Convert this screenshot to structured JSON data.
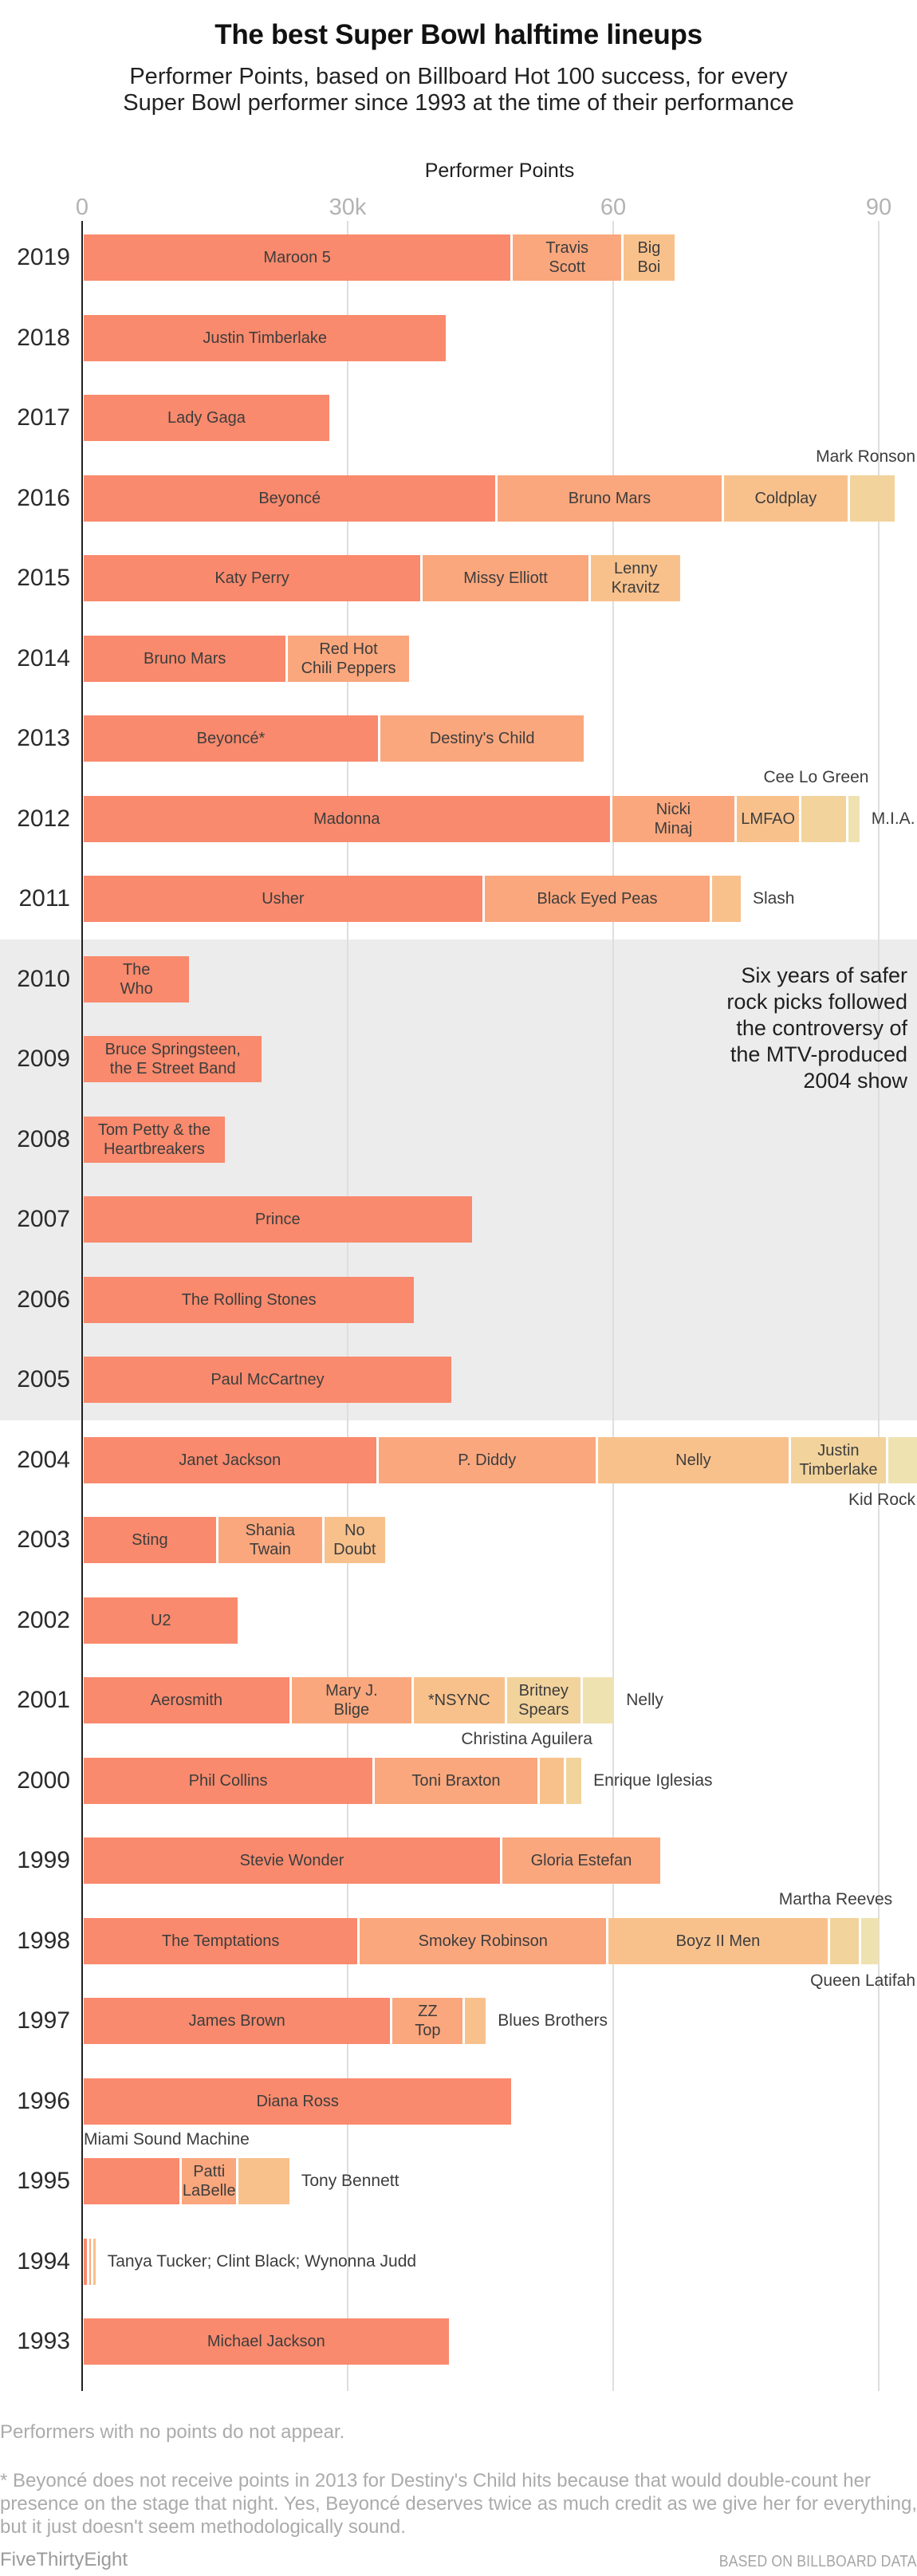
{
  "header": {
    "title": "The best Super Bowl halftime lineups",
    "subtitle": "Performer Points, based on Billboard Hot 100 success, for every\nSuper Bowl performer since 1993 at the time of their performance"
  },
  "chart_data": {
    "type": "bar",
    "orientation": "horizontal-stacked",
    "title": "The best Super Bowl halftime lineups",
    "xlabel": "Performer Points",
    "xlim": [
      0,
      94800
    ],
    "grid": "vertical",
    "x_ticks": [
      {
        "label": "0",
        "value": 0
      },
      {
        "label": "30k",
        "value": 30000
      },
      {
        "label": "60",
        "value": 60000
      },
      {
        "label": "90",
        "value": 90000
      }
    ],
    "palette": [
      "#f98a6d",
      "#faa77d",
      "#f8c18c",
      "#f2d39c",
      "#efe2b1"
    ],
    "colors": {
      "band": "#ececec",
      "gridline": "#dedede",
      "axis_line": "#222222",
      "tick_label": "#b3b3b3",
      "bar_label": "#3d3d3d"
    },
    "rows": [
      {
        "year": "2019",
        "segments": [
          {
            "name": "Maroon 5",
            "value": 48500,
            "label": "inside"
          },
          {
            "name": "Travis Scott",
            "lines": [
              "Travis",
              "Scott"
            ],
            "value": 12500,
            "label": "inside"
          },
          {
            "name": "Big Boi",
            "lines": [
              "Big",
              "Boi"
            ],
            "value": 6000,
            "label": "inside"
          }
        ]
      },
      {
        "year": "2018",
        "segments": [
          {
            "name": "Justin Timberlake",
            "value": 41200,
            "label": "inside"
          }
        ]
      },
      {
        "year": "2017",
        "segments": [
          {
            "name": "Lady Gaga",
            "value": 28000,
            "label": "inside"
          }
        ]
      },
      {
        "year": "2016",
        "segments": [
          {
            "name": "Beyoncé",
            "value": 46800,
            "label": "inside"
          },
          {
            "name": "Bruno Mars",
            "value": 25500,
            "label": "inside"
          },
          {
            "name": "Coldplay",
            "value": 14300,
            "label": "inside"
          },
          {
            "name": "Mark Ronson",
            "value": 5300,
            "label": "above"
          }
        ]
      },
      {
        "year": "2015",
        "segments": [
          {
            "name": "Katy Perry",
            "value": 38300,
            "label": "inside"
          },
          {
            "name": "Missy Elliott",
            "value": 19000,
            "label": "inside"
          },
          {
            "name": "Lenny Kravitz",
            "lines": [
              "Lenny",
              "Kravitz"
            ],
            "value": 10400,
            "label": "inside"
          }
        ]
      },
      {
        "year": "2014",
        "segments": [
          {
            "name": "Bruno Mars",
            "value": 23100,
            "label": "inside"
          },
          {
            "name": "Red Hot Chili Peppers",
            "lines": [
              "Red Hot",
              "Chili Peppers"
            ],
            "value": 13900,
            "label": "inside"
          }
        ]
      },
      {
        "year": "2013",
        "segments": [
          {
            "name": "Beyoncé*",
            "value": 33500,
            "label": "inside"
          },
          {
            "name": "Destiny's Child",
            "value": 23300,
            "label": "inside"
          }
        ]
      },
      {
        "year": "2012",
        "segments": [
          {
            "name": "Madonna",
            "value": 59700,
            "label": "inside"
          },
          {
            "name": "Nicki Minaj",
            "lines": [
              "Nicki",
              "Minaj"
            ],
            "value": 14100,
            "label": "inside"
          },
          {
            "name": "LMFAO",
            "value": 7300,
            "label": "inside"
          },
          {
            "name": "Cee Lo Green",
            "value": 5300,
            "label": "above"
          },
          {
            "name": "M.I.A.",
            "value": 1500,
            "label": "right"
          }
        ]
      },
      {
        "year": "2011",
        "segments": [
          {
            "name": "Usher",
            "value": 45300,
            "label": "inside"
          },
          {
            "name": "Black Eyed Peas",
            "value": 25700,
            "label": "inside"
          },
          {
            "name": "Slash",
            "value": 3500,
            "label": "right"
          }
        ]
      },
      {
        "year": "2010",
        "segments": [
          {
            "name": "The Who",
            "lines": [
              "The",
              "Who"
            ],
            "value": 12200,
            "label": "inside"
          }
        ]
      },
      {
        "year": "2009",
        "segments": [
          {
            "name": "Bruce Springsteen, the E Street Band",
            "lines": [
              "Bruce Springsteen,",
              "the E Street Band"
            ],
            "value": 20400,
            "label": "inside"
          }
        ]
      },
      {
        "year": "2008",
        "segments": [
          {
            "name": "Tom Petty & the Heartbreakers",
            "lines": [
              "Tom Petty & the",
              "Heartbreakers"
            ],
            "value": 16200,
            "label": "inside"
          }
        ]
      },
      {
        "year": "2007",
        "segments": [
          {
            "name": "Prince",
            "value": 44100,
            "label": "inside"
          }
        ]
      },
      {
        "year": "2006",
        "segments": [
          {
            "name": "The Rolling Stones",
            "value": 37600,
            "label": "inside"
          }
        ]
      },
      {
        "year": "2005",
        "segments": [
          {
            "name": "Paul McCartney",
            "value": 41800,
            "label": "inside"
          }
        ]
      },
      {
        "year": "2004",
        "segments": [
          {
            "name": "Janet Jackson",
            "value": 33300,
            "label": "inside"
          },
          {
            "name": "P. Diddy",
            "value": 24800,
            "label": "inside"
          },
          {
            "name": "Nelly",
            "value": 21800,
            "label": "inside"
          },
          {
            "name": "Justin Timberlake",
            "lines": [
              "Justin",
              "Timberlake"
            ],
            "value": 11000,
            "label": "inside"
          },
          {
            "name": "Kid Rock",
            "value": 3900,
            "label": "below"
          }
        ]
      },
      {
        "year": "2003",
        "segments": [
          {
            "name": "Sting",
            "value": 15200,
            "label": "inside"
          },
          {
            "name": "Shania Twain",
            "lines": [
              "Shania",
              "Twain"
            ],
            "value": 12000,
            "label": "inside"
          },
          {
            "name": "No Doubt",
            "lines": [
              "No",
              "Doubt"
            ],
            "value": 7100,
            "label": "inside"
          }
        ]
      },
      {
        "year": "2002",
        "segments": [
          {
            "name": "U2",
            "value": 17700,
            "label": "inside"
          }
        ]
      },
      {
        "year": "2001",
        "segments": [
          {
            "name": "Aerosmith",
            "value": 23500,
            "label": "inside"
          },
          {
            "name": "Mary J. Blige",
            "lines": [
              "Mary J.",
              "Blige"
            ],
            "value": 13800,
            "label": "inside"
          },
          {
            "name": "*NSYNC",
            "value": 10500,
            "label": "inside"
          },
          {
            "name": "Britney Spears",
            "lines": [
              "Britney",
              "Spears"
            ],
            "value": 8600,
            "label": "inside"
          },
          {
            "name": "Nelly",
            "value": 3800,
            "label": "right"
          }
        ]
      },
      {
        "year": "2000",
        "segments": [
          {
            "name": "Phil Collins",
            "value": 32900,
            "label": "inside"
          },
          {
            "name": "Toni Braxton",
            "value": 18600,
            "label": "inside"
          },
          {
            "name": "Christina Aguilera",
            "value": 3000,
            "label": "above"
          },
          {
            "name": "Enrique Iglesias",
            "value": 2000,
            "label": "right"
          }
        ]
      },
      {
        "year": "1999",
        "segments": [
          {
            "name": "Stevie Wonder",
            "value": 47300,
            "label": "inside"
          },
          {
            "name": "Gloria Estefan",
            "value": 18100,
            "label": "inside"
          }
        ]
      },
      {
        "year": "1998",
        "segments": [
          {
            "name": "The Temptations",
            "value": 31200,
            "label": "inside"
          },
          {
            "name": "Smokey Robinson",
            "value": 28100,
            "label": "inside"
          },
          {
            "name": "Boyz II Men",
            "value": 25000,
            "label": "inside"
          },
          {
            "name": "Martha Reeves",
            "value": 3500,
            "label": "above"
          },
          {
            "name": "Queen Latifah",
            "value": 2300,
            "label": "below"
          }
        ]
      },
      {
        "year": "1997",
        "segments": [
          {
            "name": "James Brown",
            "value": 34900,
            "label": "inside"
          },
          {
            "name": "ZZ Top",
            "lines": [
              "ZZ",
              "Top"
            ],
            "value": 8200,
            "label": "inside"
          },
          {
            "name": "Blues Brothers",
            "value": 2600,
            "label": "right"
          }
        ]
      },
      {
        "year": "1996",
        "segments": [
          {
            "name": "Diana Ross",
            "value": 48600,
            "label": "inside"
          }
        ]
      },
      {
        "year": "1995",
        "segments": [
          {
            "name": "Miami Sound Machine",
            "value": 11100,
            "label": "above-left"
          },
          {
            "name": "Patti LaBelle",
            "lines": [
              "Patti",
              "LaBelle"
            ],
            "value": 6400,
            "label": "inside"
          },
          {
            "name": "Tony Bennett",
            "value": 6000,
            "label": "right"
          }
        ]
      },
      {
        "year": "1994",
        "outside_label": "Tanya Tucker; Clint Black; Wynonna Judd",
        "segments": [
          {
            "name": "Tanya Tucker",
            "value": 600,
            "label": "none"
          },
          {
            "name": "Clint Black",
            "value": 500,
            "label": "none"
          },
          {
            "name": "Wynonna Judd",
            "value": 500,
            "label": "none"
          }
        ]
      },
      {
        "year": "1993",
        "segments": [
          {
            "name": "Michael Jackson",
            "value": 41500,
            "label": "inside"
          }
        ]
      }
    ],
    "shaded_band": {
      "start_year": "2010",
      "end_year": "2005",
      "color": "#ececec"
    },
    "annotation": {
      "text": "Six years of safer\nrock picks followed\nthe controversy of\nthe MTV-produced\n2004 show"
    }
  },
  "footnotes": {
    "note1": "Performers with no points do not appear.",
    "note2": "* Beyoncé does not receive points in 2013 for Destiny's Child hits because that would double-count her presence on the stage that night. Yes, Beyoncé deserves twice as much credit as we give her for everything, but it just doesn't seem methodologically sound."
  },
  "footer": {
    "left": "FiveThirtyEight",
    "right": "BASED ON BILLBOARD DATA"
  }
}
